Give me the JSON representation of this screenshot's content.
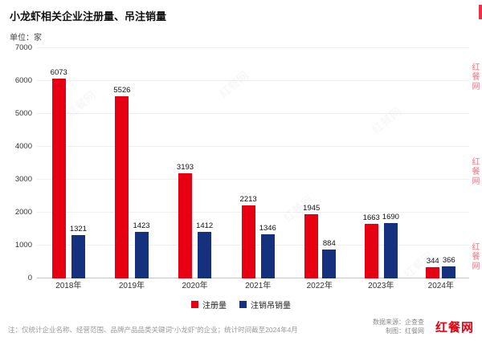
{
  "header": {
    "title": "小龙虾相关企业注册量、吊注销量",
    "unit": "单位：家"
  },
  "chart_data": {
    "type": "bar",
    "title": "小龙虾相关企业注册量、吊注销量",
    "unit": "家",
    "categories": [
      "2018年",
      "2019年",
      "2020年",
      "2021年",
      "2022年",
      "2023年",
      "2024年"
    ],
    "series": [
      {
        "name": "注册量",
        "color": "#e60012",
        "values": [
          6073,
          5526,
          3193,
          2213,
          1945,
          1663,
          344
        ]
      },
      {
        "name": "注销吊销量",
        "color": "#15317e",
        "values": [
          1321,
          1423,
          1412,
          1346,
          884,
          1690,
          366
        ]
      }
    ],
    "ylim": [
      0,
      7000
    ],
    "yticks": [
      0,
      1000,
      2000,
      3000,
      4000,
      5000,
      6000,
      7000
    ],
    "grid": true,
    "legend_position": "bottom"
  },
  "footer": {
    "note": "注：仅统计企业名称、经营范围、品牌产品品类关键词“小龙虾”的企业；统计时间截至2024年4月",
    "source": "数据来源：企查查",
    "credit": "制图：红餐网",
    "logo": "红餐网"
  },
  "watermark": {
    "text": "红餐网"
  }
}
